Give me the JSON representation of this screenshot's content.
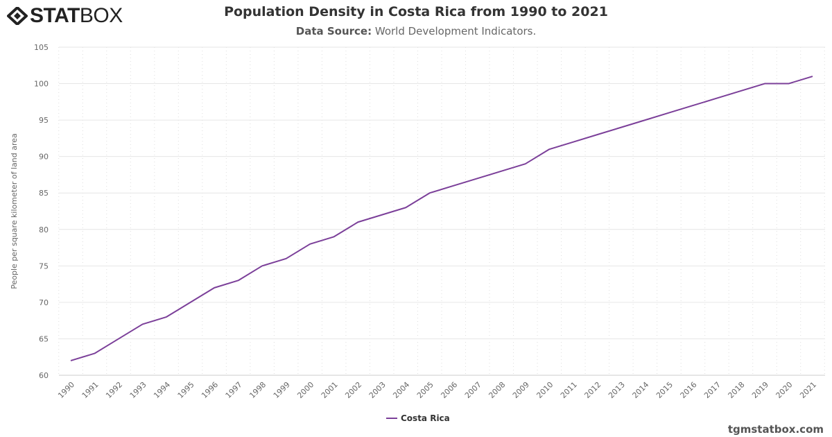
{
  "logo": "STATBOX",
  "header": {
    "title": "Population Density in Costa Rica from 1990 to 2021",
    "source_label": "Data Source:",
    "source_value": "World Development Indicators."
  },
  "watermark": "tgmstatbox.com",
  "chart_data": {
    "type": "line",
    "title": "Population Density in Costa Rica from 1990 to 2021",
    "ylabel": "People per square kilometer of land area",
    "xlabel": "",
    "ylim": [
      60,
      105
    ],
    "yticks": [
      60,
      65,
      70,
      75,
      80,
      85,
      90,
      95,
      100,
      105
    ],
    "grid": true,
    "legend": "bottom-center",
    "color": "#7b3f99",
    "categories": [
      "1990",
      "1991",
      "1992",
      "1993",
      "1994",
      "1995",
      "1996",
      "1997",
      "1998",
      "1999",
      "2000",
      "2001",
      "2002",
      "2003",
      "2004",
      "2005",
      "2006",
      "2007",
      "2008",
      "2009",
      "2010",
      "2011",
      "2012",
      "2013",
      "2014",
      "2015",
      "2016",
      "2017",
      "2018",
      "2019",
      "2020",
      "2021"
    ],
    "series": [
      {
        "name": "Costa Rica",
        "values": [
          62,
          63,
          65,
          67,
          68,
          70,
          72,
          73,
          75,
          76,
          78,
          79,
          81,
          82,
          83,
          85,
          86,
          87,
          88,
          89,
          91,
          92,
          93,
          94,
          95,
          96,
          97,
          98,
          99,
          100,
          100,
          101
        ]
      }
    ]
  }
}
